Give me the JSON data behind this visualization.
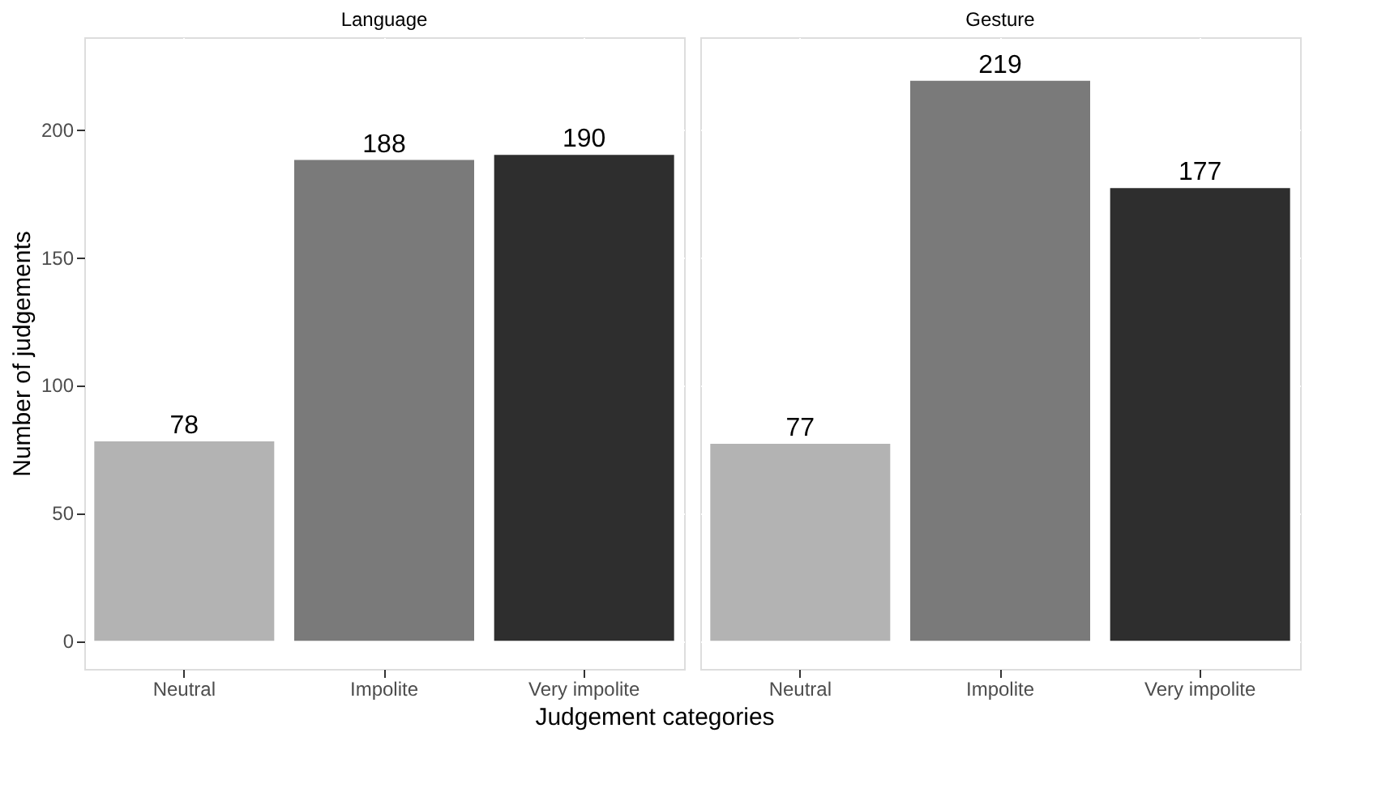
{
  "chart_data": [
    {
      "type": "bar",
      "title": "Language",
      "xlabel": "Judgement categories",
      "ylabel": "Number of judgements",
      "categories": [
        "Neutral",
        "Impolite",
        "Very impolite"
      ],
      "values": [
        78,
        188,
        190
      ],
      "colors": [
        "#b3b3b3",
        "#7a7a7a",
        "#2e2e2e"
      ],
      "data_labels": true,
      "ylim": [
        -11,
        236
      ],
      "yticks": [
        0,
        50,
        100,
        150,
        200
      ],
      "grid": true
    },
    {
      "type": "bar",
      "title": "Gesture",
      "categories": [
        "Neutral",
        "Impolite",
        "Very impolite"
      ],
      "values": [
        77,
        219,
        177
      ],
      "colors": [
        "#b3b3b3",
        "#7a7a7a",
        "#2e2e2e"
      ],
      "data_labels": true,
      "ylim": [
        -11,
        236
      ],
      "yticks": [
        0,
        50,
        100,
        150,
        200
      ],
      "grid": true,
      "tick_labels": "x"
    }
  ]
}
